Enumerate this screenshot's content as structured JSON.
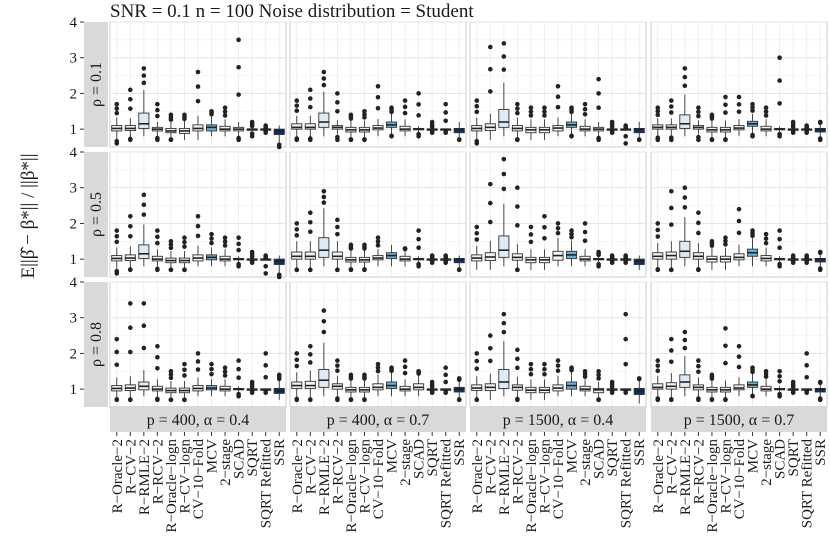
{
  "chart_data": {
    "type": "boxplot-facet-grid",
    "title": "SNR = 0.1 n = 100 Noise distribution = Student",
    "ylabel": "E||β̂ − β*|| / ||β*||",
    "ylim": [
      0.5,
      4
    ],
    "yticks": [
      1,
      2,
      3,
      4
    ],
    "row_strips": [
      "ρ = 0.1",
      "ρ = 0.5",
      "ρ = 0.8"
    ],
    "col_strips": [
      "p = 400, α = 0.4",
      "p = 400, α = 0.7",
      "p = 1500, α = 0.4",
      "p = 1500, α = 0.7"
    ],
    "methods": [
      "R−Oracle−2",
      "R−CV−2",
      "R−RMLE−2",
      "R−RCV−2",
      "R−Oracle−logn",
      "R−CV−logn",
      "CV−10−Fold",
      "MCV",
      "2−stage",
      "SCAD",
      "SQRT",
      "SQRT Refitted",
      "SSR"
    ],
    "method_colors": [
      "#f2f2f2",
      "#f2f2f2",
      "#deebf7",
      "#f2f2f2",
      "#f2f2f2",
      "#f2f2f2",
      "#f2f2f2",
      "#6baed6",
      "#f2f2f2",
      "#f2f2f2",
      "#f2f2f2",
      "#f2f2f2",
      "#08306b"
    ],
    "panels": [
      {
        "row": 0,
        "col": 0,
        "boxes": [
          [
            0.6,
            0.95,
            1.02,
            1.1,
            1.7
          ],
          [
            0.7,
            0.96,
            1.02,
            1.1,
            2.1
          ],
          [
            0.8,
            1.02,
            1.15,
            1.45,
            2.7
          ],
          [
            0.7,
            0.95,
            1.0,
            1.05,
            1.7
          ],
          [
            0.7,
            0.9,
            0.95,
            1.02,
            1.4
          ],
          [
            0.7,
            0.88,
            0.95,
            1.02,
            1.4
          ],
          [
            0.7,
            0.95,
            1.02,
            1.12,
            2.6
          ],
          [
            0.8,
            0.95,
            1.05,
            1.12,
            1.5
          ],
          [
            0.8,
            0.95,
            1.0,
            1.08,
            1.6
          ],
          [
            0.7,
            0.95,
            1.0,
            1.05,
            3.5
          ],
          [
            0.8,
            0.98,
            1.0,
            1.0,
            1.2
          ],
          [
            0.9,
            1.0,
            1.0,
            1.0,
            1.1
          ],
          [
            0.5,
            0.85,
            0.95,
            1.0,
            1.1
          ]
        ]
      },
      {
        "row": 0,
        "col": 1,
        "boxes": [
          [
            0.7,
            1.0,
            1.05,
            1.15,
            1.8
          ],
          [
            0.7,
            1.0,
            1.05,
            1.15,
            2.1
          ],
          [
            0.8,
            1.05,
            1.2,
            1.45,
            2.6
          ],
          [
            0.7,
            1.0,
            1.05,
            1.1,
            2.0
          ],
          [
            0.7,
            0.92,
            0.98,
            1.05,
            1.4
          ],
          [
            0.7,
            0.92,
            0.98,
            1.05,
            1.5
          ],
          [
            0.8,
            0.98,
            1.03,
            1.1,
            2.2
          ],
          [
            0.8,
            1.05,
            1.12,
            1.2,
            1.6
          ],
          [
            0.8,
            0.95,
            1.0,
            1.08,
            1.8
          ],
          [
            0.8,
            0.98,
            1.0,
            1.02,
            2.0
          ],
          [
            0.9,
            1.0,
            1.0,
            1.0,
            1.2
          ],
          [
            0.9,
            1.0,
            1.0,
            1.0,
            1.7
          ],
          [
            0.7,
            0.9,
            1.0,
            1.02,
            1.2
          ]
        ]
      },
      {
        "row": 0,
        "col": 2,
        "boxes": [
          [
            0.6,
            0.95,
            1.02,
            1.1,
            1.8
          ],
          [
            0.7,
            0.96,
            1.05,
            1.15,
            3.3
          ],
          [
            0.8,
            1.05,
            1.2,
            1.55,
            3.4
          ],
          [
            0.7,
            0.95,
            1.02,
            1.1,
            1.7
          ],
          [
            0.7,
            0.9,
            0.98,
            1.05,
            1.6
          ],
          [
            0.7,
            0.9,
            0.98,
            1.05,
            1.6
          ],
          [
            0.8,
            0.95,
            1.03,
            1.1,
            2.2
          ],
          [
            0.8,
            1.05,
            1.12,
            1.2,
            1.6
          ],
          [
            0.8,
            0.95,
            1.0,
            1.08,
            1.7
          ],
          [
            0.7,
            0.95,
            1.0,
            1.05,
            2.4
          ],
          [
            0.9,
            1.0,
            1.0,
            1.0,
            1.2
          ],
          [
            0.6,
            1.0,
            1.0,
            1.0,
            1.1
          ],
          [
            0.7,
            0.9,
            1.0,
            1.02,
            1.2
          ]
        ]
      },
      {
        "row": 0,
        "col": 3,
        "boxes": [
          [
            0.7,
            1.0,
            1.05,
            1.12,
            1.6
          ],
          [
            0.7,
            1.0,
            1.05,
            1.12,
            1.8
          ],
          [
            0.8,
            1.02,
            1.15,
            1.4,
            2.7
          ],
          [
            0.7,
            1.0,
            1.05,
            1.1,
            1.6
          ],
          [
            0.7,
            0.92,
            0.98,
            1.05,
            1.4
          ],
          [
            0.7,
            0.92,
            0.98,
            1.05,
            1.9
          ],
          [
            0.8,
            0.98,
            1.03,
            1.1,
            1.9
          ],
          [
            0.8,
            1.08,
            1.15,
            1.22,
            1.7
          ],
          [
            0.8,
            0.95,
            1.0,
            1.08,
            1.6
          ],
          [
            0.8,
            0.98,
            1.0,
            1.02,
            3.0
          ],
          [
            0.9,
            1.0,
            1.0,
            1.0,
            1.2
          ],
          [
            0.9,
            1.0,
            1.0,
            1.0,
            1.1
          ],
          [
            0.7,
            0.92,
            1.0,
            1.02,
            1.2
          ]
        ]
      },
      {
        "row": 1,
        "col": 0,
        "boxes": [
          [
            0.6,
            0.95,
            1.02,
            1.1,
            1.8
          ],
          [
            0.7,
            0.96,
            1.03,
            1.12,
            2.2
          ],
          [
            0.8,
            1.02,
            1.15,
            1.4,
            2.8
          ],
          [
            0.7,
            0.95,
            1.0,
            1.08,
            1.8
          ],
          [
            0.7,
            0.9,
            0.96,
            1.03,
            1.5
          ],
          [
            0.7,
            0.9,
            0.96,
            1.03,
            1.6
          ],
          [
            0.8,
            0.95,
            1.03,
            1.12,
            2.2
          ],
          [
            0.8,
            0.98,
            1.05,
            1.12,
            1.7
          ],
          [
            0.8,
            0.95,
            1.0,
            1.08,
            1.6
          ],
          [
            0.8,
            0.98,
            1.0,
            1.02,
            1.6
          ],
          [
            0.9,
            1.0,
            1.0,
            1.0,
            1.2
          ],
          [
            0.6,
            1.0,
            1.0,
            1.0,
            1.1
          ],
          [
            0.5,
            0.85,
            0.95,
            1.0,
            1.1
          ]
        ]
      },
      {
        "row": 1,
        "col": 1,
        "boxes": [
          [
            0.7,
            1.0,
            1.08,
            1.2,
            2.0
          ],
          [
            0.7,
            1.0,
            1.08,
            1.2,
            2.3
          ],
          [
            0.8,
            1.05,
            1.25,
            1.6,
            2.9
          ],
          [
            0.7,
            1.0,
            1.08,
            1.2,
            2.1
          ],
          [
            0.7,
            0.92,
            0.98,
            1.05,
            1.4
          ],
          [
            0.7,
            0.92,
            0.98,
            1.05,
            1.4
          ],
          [
            0.8,
            0.98,
            1.03,
            1.1,
            1.6
          ],
          [
            0.8,
            1.02,
            1.1,
            1.18,
            1.4
          ],
          [
            0.8,
            0.95,
            1.0,
            1.08,
            1.3
          ],
          [
            0.8,
            0.98,
            1.0,
            1.02,
            1.8
          ],
          [
            0.9,
            1.0,
            1.0,
            1.0,
            1.1
          ],
          [
            0.9,
            1.0,
            1.0,
            1.0,
            1.1
          ],
          [
            0.7,
            0.9,
            1.0,
            1.02,
            1.1
          ]
        ]
      },
      {
        "row": 1,
        "col": 2,
        "boxes": [
          [
            0.7,
            0.95,
            1.03,
            1.12,
            1.9
          ],
          [
            0.7,
            0.96,
            1.06,
            1.18,
            3.1
          ],
          [
            0.8,
            1.05,
            1.25,
            1.65,
            3.8
          ],
          [
            0.7,
            0.97,
            1.05,
            1.15,
            3.0
          ],
          [
            0.7,
            0.9,
            0.98,
            1.05,
            1.9
          ],
          [
            0.7,
            0.9,
            0.98,
            1.05,
            2.2
          ],
          [
            0.8,
            0.97,
            1.1,
            1.22,
            2.0
          ],
          [
            0.8,
            1.02,
            1.12,
            1.22,
            1.8
          ],
          [
            0.8,
            0.95,
            1.0,
            1.08,
            2.0
          ],
          [
            0.8,
            0.98,
            1.0,
            1.02,
            1.2
          ],
          [
            0.9,
            1.0,
            1.0,
            1.0,
            1.1
          ],
          [
            0.9,
            1.0,
            1.0,
            1.0,
            1.1
          ],
          [
            0.7,
            0.85,
            0.95,
            1.0,
            1.1
          ]
        ]
      },
      {
        "row": 1,
        "col": 3,
        "boxes": [
          [
            0.7,
            1.0,
            1.08,
            1.18,
            2.0
          ],
          [
            0.7,
            1.0,
            1.1,
            1.2,
            2.9
          ],
          [
            0.8,
            1.05,
            1.22,
            1.5,
            3.0
          ],
          [
            0.7,
            1.0,
            1.08,
            1.18,
            2.3
          ],
          [
            0.7,
            0.92,
            1.0,
            1.08,
            1.5
          ],
          [
            0.7,
            0.92,
            1.0,
            1.08,
            1.6
          ],
          [
            0.8,
            0.98,
            1.05,
            1.15,
            2.4
          ],
          [
            0.8,
            1.08,
            1.18,
            1.28,
            1.8
          ],
          [
            0.8,
            0.95,
            1.02,
            1.1,
            1.7
          ],
          [
            0.8,
            0.98,
            1.0,
            1.02,
            1.8
          ],
          [
            0.9,
            1.0,
            1.0,
            1.0,
            1.1
          ],
          [
            0.9,
            1.0,
            1.0,
            1.0,
            1.1
          ],
          [
            0.7,
            0.92,
            1.0,
            1.02,
            1.2
          ]
        ]
      },
      {
        "row": 2,
        "col": 0,
        "boxes": [
          [
            0.7,
            0.95,
            1.02,
            1.1,
            2.4
          ],
          [
            0.7,
            0.96,
            1.03,
            1.12,
            3.4
          ],
          [
            0.8,
            0.98,
            1.08,
            1.2,
            3.4
          ],
          [
            0.7,
            0.95,
            1.0,
            1.08,
            2.2
          ],
          [
            0.7,
            0.9,
            0.96,
            1.03,
            1.5
          ],
          [
            0.7,
            0.9,
            0.96,
            1.03,
            1.7
          ],
          [
            0.8,
            0.95,
            1.02,
            1.1,
            2.0
          ],
          [
            0.8,
            0.98,
            1.03,
            1.1,
            1.7
          ],
          [
            0.8,
            0.95,
            1.0,
            1.08,
            1.6
          ],
          [
            0.8,
            0.98,
            1.0,
            1.02,
            1.8
          ],
          [
            0.9,
            1.0,
            1.0,
            1.0,
            1.2
          ],
          [
            0.9,
            1.0,
            1.0,
            1.0,
            2.0
          ],
          [
            0.7,
            0.88,
            0.95,
            1.02,
            1.4
          ]
        ]
      },
      {
        "row": 2,
        "col": 1,
        "boxes": [
          [
            0.7,
            1.02,
            1.1,
            1.2,
            2.0
          ],
          [
            0.7,
            1.02,
            1.1,
            1.22,
            2.2
          ],
          [
            0.8,
            1.05,
            1.25,
            1.55,
            3.2
          ],
          [
            0.7,
            1.0,
            1.08,
            1.15,
            1.8
          ],
          [
            0.7,
            0.92,
            0.98,
            1.05,
            1.4
          ],
          [
            0.7,
            0.92,
            0.98,
            1.05,
            1.4
          ],
          [
            0.8,
            0.98,
            1.05,
            1.15,
            1.7
          ],
          [
            0.8,
            1.02,
            1.1,
            1.2,
            1.6
          ],
          [
            0.8,
            0.95,
            1.0,
            1.08,
            1.8
          ],
          [
            0.8,
            0.98,
            1.05,
            1.15,
            1.5
          ],
          [
            0.9,
            1.0,
            1.0,
            1.0,
            1.2
          ],
          [
            0.9,
            1.0,
            1.0,
            1.0,
            1.6
          ],
          [
            0.7,
            0.92,
            1.0,
            1.05,
            1.3
          ]
        ]
      },
      {
        "row": 2,
        "col": 2,
        "boxes": [
          [
            0.7,
            0.96,
            1.03,
            1.12,
            2.0
          ],
          [
            0.7,
            0.96,
            1.05,
            1.15,
            2.5
          ],
          [
            0.8,
            1.02,
            1.2,
            1.55,
            3.1
          ],
          [
            0.7,
            0.97,
            1.05,
            1.12,
            2.1
          ],
          [
            0.7,
            0.9,
            0.97,
            1.05,
            1.7
          ],
          [
            0.7,
            0.9,
            0.97,
            1.05,
            1.7
          ],
          [
            0.8,
            0.95,
            1.03,
            1.12,
            1.8
          ],
          [
            0.8,
            1.0,
            1.1,
            1.2,
            1.6
          ],
          [
            0.8,
            0.95,
            1.0,
            1.08,
            1.5
          ],
          [
            0.7,
            0.9,
            0.98,
            1.02,
            1.5
          ],
          [
            0.9,
            1.0,
            1.0,
            1.0,
            1.2
          ],
          [
            0.9,
            1.0,
            1.0,
            1.0,
            3.1
          ],
          [
            0.6,
            0.85,
            0.95,
            1.02,
            1.3
          ]
        ]
      },
      {
        "row": 2,
        "col": 3,
        "boxes": [
          [
            0.7,
            1.0,
            1.05,
            1.15,
            1.8
          ],
          [
            0.7,
            1.0,
            1.08,
            1.18,
            2.4
          ],
          [
            0.8,
            1.05,
            1.2,
            1.4,
            2.6
          ],
          [
            0.7,
            0.98,
            1.05,
            1.12,
            1.8
          ],
          [
            0.7,
            0.92,
            0.98,
            1.05,
            1.4
          ],
          [
            0.7,
            0.92,
            0.98,
            1.05,
            2.7
          ],
          [
            0.8,
            0.98,
            1.03,
            1.12,
            2.2
          ],
          [
            0.8,
            1.05,
            1.12,
            1.2,
            1.6
          ],
          [
            0.8,
            0.95,
            1.0,
            1.08,
            1.5
          ],
          [
            0.8,
            0.98,
            1.0,
            1.02,
            1.5
          ],
          [
            0.9,
            1.0,
            1.0,
            1.0,
            1.2
          ],
          [
            0.9,
            1.0,
            1.0,
            1.0,
            2.0
          ],
          [
            0.7,
            0.92,
            1.0,
            1.02,
            1.2
          ]
        ]
      }
    ]
  }
}
